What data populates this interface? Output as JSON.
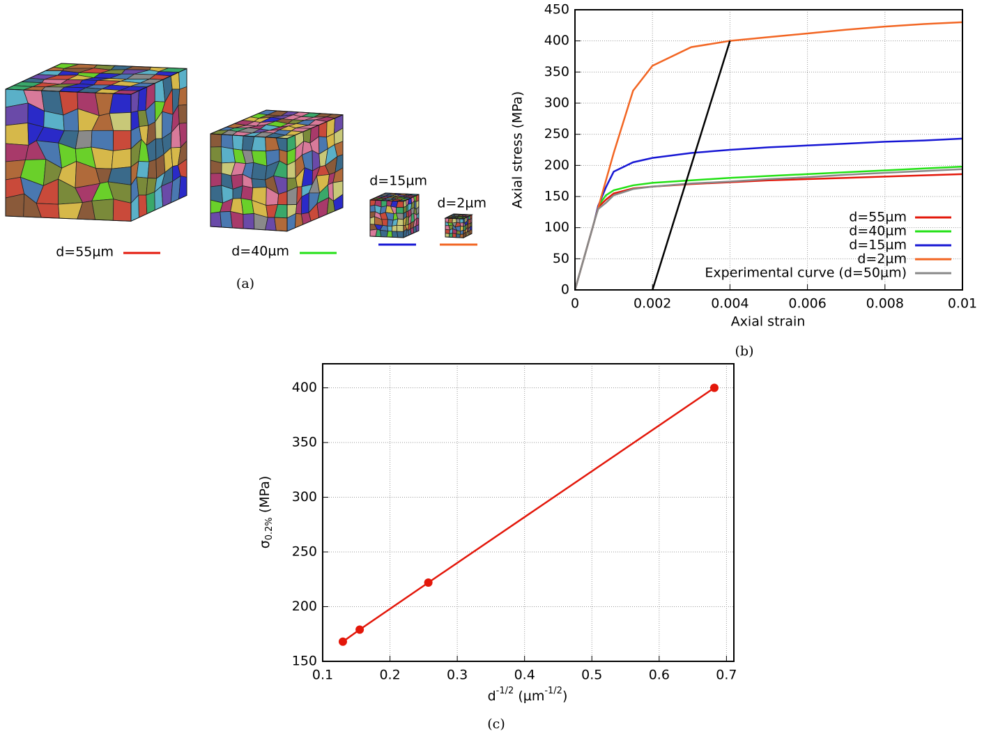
{
  "panel_a": {
    "caption": "(a)",
    "samples": [
      {
        "label": "d=55µm",
        "color": "#e3170a"
      },
      {
        "label": "d=40µm",
        "color": "#22e014"
      },
      {
        "label": "d=15µm",
        "color": "#1616d4"
      },
      {
        "label": "d=2µm",
        "color": "#f26522"
      }
    ]
  },
  "chart_data": [
    {
      "type": "line",
      "caption": "(b)",
      "xlabel": "Axial strain",
      "ylabel": "Axial stress (MPa)",
      "xlim": [
        0,
        0.01
      ],
      "ylim": [
        0,
        450
      ],
      "xticks": [
        0,
        0.002,
        0.004,
        0.006,
        0.008,
        0.01
      ],
      "yticks": [
        0,
        50,
        100,
        150,
        200,
        250,
        300,
        350,
        400,
        450
      ],
      "grid": true,
      "legend": "lower right",
      "x": [
        0,
        0.0005,
        0.0006,
        0.0008,
        0.001,
        0.0015,
        0.002,
        0.003,
        0.004,
        0.005,
        0.006,
        0.007,
        0.008,
        0.009,
        0.01
      ],
      "series": [
        {
          "name": "d=55µm",
          "color": "#e3170a",
          "values": [
            0,
            110,
            133,
            145,
            155,
            163,
            166,
            170,
            173,
            176,
            178,
            180,
            182,
            184,
            186
          ]
        },
        {
          "name": "d=40µm",
          "color": "#22e014",
          "values": [
            0,
            110,
            135,
            152,
            160,
            168,
            172,
            176,
            180,
            183,
            186,
            189,
            192,
            195,
            198
          ]
        },
        {
          "name": "d=15µm",
          "color": "#1616d4",
          "values": [
            0,
            110,
            135,
            165,
            190,
            205,
            212,
            220,
            225,
            229,
            232,
            235,
            238,
            240,
            243
          ]
        },
        {
          "name": "d=2µm",
          "color": "#f26522",
          "values": [
            0,
            110,
            132,
            176,
            220,
            320,
            360,
            390,
            400,
            406,
            412,
            418,
            423,
            427,
            430
          ]
        },
        {
          "name": "Experimental curve (d=50µm)",
          "color": "#888888",
          "values": [
            0,
            110,
            130,
            140,
            152,
            162,
            166,
            171,
            174,
            178,
            181,
            185,
            188,
            191,
            194
          ]
        },
        {
          "color": "#000000",
          "x": [
            0.002,
            0.004
          ],
          "values": [
            0,
            400
          ]
        }
      ]
    },
    {
      "type": "line",
      "caption": "(c)",
      "xlabel": [
        "d",
        "-1/2",
        " (µm",
        "-1/2",
        ")"
      ],
      "ylabel": [
        "σ",
        "0.2%",
        " (MPa)"
      ],
      "xlim": [
        0.1,
        0.711
      ],
      "ylim": [
        150,
        422
      ],
      "xticks": [
        0.1,
        0.2,
        0.3,
        0.4,
        0.5,
        0.6,
        0.7
      ],
      "yticks": [
        150,
        200,
        250,
        300,
        350,
        400
      ],
      "grid": true,
      "markers": true,
      "x": [
        0.13,
        0.155,
        0.257,
        0.682
      ],
      "series": [
        {
          "color": "#e3170a",
          "values": [
            168,
            179,
            222,
            400
          ]
        }
      ]
    }
  ]
}
